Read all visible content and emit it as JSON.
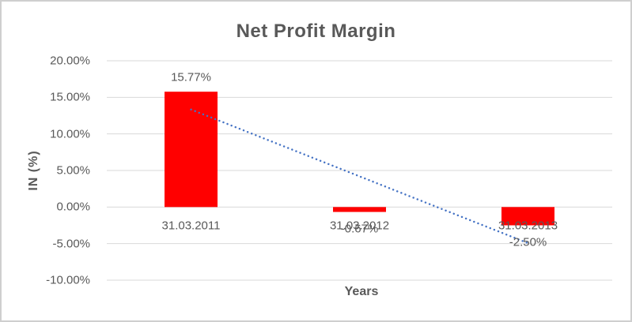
{
  "chart_data": {
    "type": "bar",
    "title": "Net Profit Margin",
    "categories": [
      "31.03.2011",
      "31.03.2012",
      "31.03.2013"
    ],
    "values": [
      15.77,
      -0.67,
      -2.5
    ],
    "data_labels": [
      "15.77%",
      "-0.67%",
      "-2.50%"
    ],
    "xlabel": "Years",
    "ylabel": "IN (%)",
    "ylim": [
      -10,
      20
    ],
    "ytick_step": 5,
    "yticks": [
      20,
      15,
      10,
      5,
      0,
      -5,
      -10
    ],
    "ytick_labels": [
      "20.00%",
      "15.00%",
      "10.00%",
      "5.00%",
      "0.00%",
      "-5.00%",
      "-10.00%"
    ],
    "grid": true,
    "legend": "none",
    "trendline": {
      "type": "linear",
      "style": "dotted"
    }
  },
  "colors": {
    "bar": "#ff0000",
    "trendline": "#4472c4",
    "gridline": "#d9d9d9",
    "text": "#595959",
    "frame_border": "#cfcfcf",
    "background": "#ffffff"
  }
}
